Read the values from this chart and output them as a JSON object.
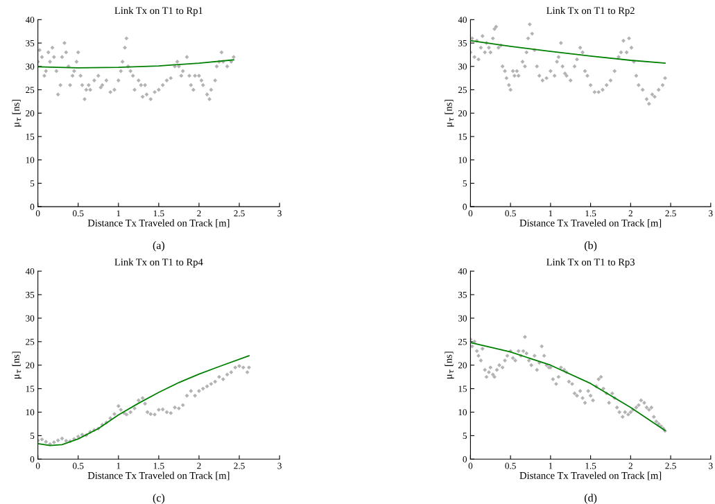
{
  "chart_data": [
    {
      "type": "scatter",
      "title": "Link Tx on T1 to Rp1",
      "xlabel": "Distance Tx Traveled on Track [m]",
      "ylabel": "μ$_{τ}$ [ns]",
      "annotations": [
        "(a)"
      ],
      "xlim": [
        0,
        3
      ],
      "ylim": [
        0,
        40
      ],
      "xticks": [
        0,
        0.5,
        1,
        1.5,
        2,
        2.5,
        3
      ],
      "yticks": [
        0,
        5,
        10,
        15,
        20,
        25,
        30,
        35,
        40
      ],
      "grid": false,
      "series": [
        {
          "marker": "diamond",
          "color": "#b3b3b3",
          "x": [
            0.0,
            0.02,
            0.05,
            0.08,
            0.1,
            0.13,
            0.15,
            0.18,
            0.2,
            0.23,
            0.25,
            0.28,
            0.3,
            0.33,
            0.35,
            0.38,
            0.4,
            0.43,
            0.45,
            0.48,
            0.5,
            0.53,
            0.55,
            0.58,
            0.6,
            0.63,
            0.65,
            0.7,
            0.75,
            0.78,
            0.8,
            0.85,
            0.9,
            0.95,
            1.0,
            1.03,
            1.05,
            1.08,
            1.1,
            1.12,
            1.15,
            1.18,
            1.2,
            1.25,
            1.28,
            1.3,
            1.33,
            1.35,
            1.4,
            1.45,
            1.5,
            1.55,
            1.6,
            1.65,
            1.7,
            1.73,
            1.75,
            1.78,
            1.8,
            1.85,
            1.88,
            1.9,
            1.93,
            1.95,
            2.0,
            2.03,
            2.05,
            2.1,
            2.13,
            2.15,
            2.2,
            2.22,
            2.25,
            2.28,
            2.3,
            2.35,
            2.4,
            2.43
          ],
          "values": [
            31,
            33.5,
            32,
            28,
            29,
            33,
            31,
            34,
            32,
            29,
            24,
            26,
            32,
            35,
            33,
            30,
            26,
            28,
            29,
            31,
            33,
            28,
            26,
            23,
            25,
            26,
            25,
            27,
            28,
            25.5,
            26,
            27,
            24.5,
            25,
            27,
            29,
            31,
            34,
            36,
            30,
            29,
            28,
            25,
            27,
            26,
            23.5,
            26,
            24,
            23,
            24.5,
            25,
            26,
            27,
            27.5,
            30,
            31,
            30,
            28,
            29,
            32,
            28,
            26,
            25,
            28,
            28,
            27,
            26,
            24,
            23,
            25,
            27,
            30,
            31,
            33,
            31,
            30,
            31,
            32
          ]
        },
        {
          "type": "line",
          "color": "#008000",
          "x": [
            0,
            0.5,
            1.0,
            1.5,
            2.0,
            2.43
          ],
          "values": [
            29.9,
            29.7,
            29.8,
            30.1,
            30.7,
            31.4
          ]
        }
      ]
    },
    {
      "type": "scatter",
      "title": "Link Tx on T1 to Rp2",
      "xlabel": "Distance Tx Traveled on Track [m]",
      "ylabel": "μ$_{τ}$ [ns]",
      "annotations": [
        "(b)"
      ],
      "xlim": [
        0,
        3
      ],
      "ylim": [
        0,
        40
      ],
      "xticks": [
        0,
        0.5,
        1,
        1.5,
        2,
        2.5,
        3
      ],
      "yticks": [
        0,
        5,
        10,
        15,
        20,
        25,
        30,
        35,
        40
      ],
      "grid": false,
      "series": [
        {
          "marker": "diamond",
          "color": "#b3b3b3",
          "x": [
            0,
            0.02,
            0.05,
            0.08,
            0.1,
            0.13,
            0.15,
            0.18,
            0.2,
            0.23,
            0.25,
            0.28,
            0.3,
            0.32,
            0.35,
            0.38,
            0.4,
            0.43,
            0.45,
            0.48,
            0.5,
            0.53,
            0.55,
            0.58,
            0.6,
            0.65,
            0.68,
            0.7,
            0.72,
            0.74,
            0.77,
            0.8,
            0.83,
            0.86,
            0.9,
            0.95,
            1.0,
            1.05,
            1.08,
            1.1,
            1.13,
            1.15,
            1.18,
            1.2,
            1.25,
            1.3,
            1.33,
            1.37,
            1.4,
            1.43,
            1.46,
            1.5,
            1.55,
            1.6,
            1.65,
            1.7,
            1.75,
            1.8,
            1.85,
            1.88,
            1.91,
            1.95,
            1.98,
            2.01,
            2.04,
            2.07,
            2.1,
            2.15,
            2.2,
            2.23,
            2.27,
            2.3,
            2.35,
            2.4,
            2.43
          ],
          "values": [
            33,
            36,
            32,
            35.5,
            31.5,
            34,
            36.5,
            33,
            35,
            34,
            33,
            36,
            38,
            38.5,
            34,
            34.5,
            30,
            29,
            27.5,
            26,
            25,
            29,
            28,
            29,
            28,
            31,
            30,
            33,
            36,
            39,
            37,
            33.5,
            30,
            28,
            27,
            27.5,
            29,
            28,
            31,
            32,
            35,
            30,
            28.5,
            28,
            27,
            30,
            31.5,
            34,
            33,
            29,
            28,
            26,
            24.5,
            24.5,
            25,
            26,
            27,
            29,
            32,
            33,
            35.5,
            33,
            36,
            34,
            31,
            28,
            26,
            25,
            23,
            22,
            24,
            23.5,
            25,
            26,
            27.5
          ]
        },
        {
          "type": "line",
          "color": "#008000",
          "x": [
            0,
            0.5,
            1.0,
            1.5,
            2.0,
            2.43
          ],
          "values": [
            35.5,
            34.3,
            33.2,
            32.2,
            31.3,
            30.7
          ]
        }
      ]
    },
    {
      "type": "scatter",
      "title": "Link Tx on T1 to Rp4",
      "xlabel": "Distance Tx Traveled on Track [m]",
      "ylabel": "μ$_{τ}$ [ns]",
      "annotations": [
        "(c)"
      ],
      "xlim": [
        0,
        3
      ],
      "ylim": [
        0,
        40
      ],
      "xticks": [
        0,
        0.5,
        1,
        1.5,
        2,
        2.5,
        3
      ],
      "yticks": [
        0,
        5,
        10,
        15,
        20,
        25,
        30,
        35,
        40
      ],
      "grid": false,
      "series": [
        {
          "marker": "diamond",
          "color": "#b3b3b3",
          "x": [
            0,
            0.05,
            0.1,
            0.15,
            0.2,
            0.25,
            0.3,
            0.35,
            0.4,
            0.45,
            0.5,
            0.55,
            0.6,
            0.65,
            0.7,
            0.75,
            0.8,
            0.85,
            0.9,
            0.95,
            1.0,
            1.03,
            1.07,
            1.1,
            1.15,
            1.2,
            1.25,
            1.3,
            1.33,
            1.36,
            1.4,
            1.45,
            1.5,
            1.55,
            1.6,
            1.65,
            1.7,
            1.75,
            1.8,
            1.85,
            1.9,
            1.95,
            2.0,
            2.05,
            2.1,
            2.15,
            2.2,
            2.25,
            2.3,
            2.35,
            2.4,
            2.45,
            2.5,
            2.55,
            2.6,
            2.62
          ],
          "values": [
            4,
            4.2,
            3.7,
            3.2,
            3.6,
            4,
            4.4,
            3.9,
            3.8,
            4.3,
            4.8,
            5.2,
            5.1,
            5.8,
            6.2,
            6.5,
            7.3,
            7.8,
            8.7,
            9.6,
            11.3,
            10.5,
            9.8,
            9.5,
            10,
            10.8,
            12.5,
            13,
            11.8,
            10,
            9.6,
            9.5,
            10.5,
            10.6,
            10,
            9.8,
            11,
            10.8,
            11.5,
            13.5,
            14.5,
            13.5,
            14.5,
            15,
            15.5,
            16,
            16.5,
            17.5,
            17,
            18,
            18.5,
            19.5,
            19.8,
            19.5,
            18.5,
            19.5
          ]
        },
        {
          "type": "line",
          "color": "#008000",
          "x": [
            0,
            0.15,
            0.3,
            0.5,
            0.75,
            1.0,
            1.25,
            1.5,
            1.75,
            2.0,
            2.25,
            2.62
          ],
          "values": [
            3.3,
            2.9,
            3.1,
            4.3,
            6.5,
            9.4,
            11.9,
            14.2,
            16.3,
            18.1,
            19.7,
            22.0
          ]
        }
      ]
    },
    {
      "type": "scatter",
      "title": "Link Tx on T1 to Rp3",
      "xlabel": "Distance Tx Traveled on Track [m]",
      "ylabel": "μ$_{τ}$ [ns]",
      "annotations": [
        "(d)"
      ],
      "xlim": [
        0,
        3
      ],
      "ylim": [
        0,
        40
      ],
      "xticks": [
        0,
        0.5,
        1,
        1.5,
        2,
        2.5,
        3
      ],
      "yticks": [
        0,
        5,
        10,
        15,
        20,
        25,
        30,
        35,
        40
      ],
      "grid": false,
      "series": [
        {
          "marker": "diamond",
          "color": "#b3b3b3",
          "x": [
            0,
            0.02,
            0.05,
            0.08,
            0.1,
            0.13,
            0.15,
            0.18,
            0.2,
            0.23,
            0.25,
            0.28,
            0.3,
            0.33,
            0.36,
            0.4,
            0.43,
            0.46,
            0.5,
            0.53,
            0.56,
            0.6,
            0.63,
            0.66,
            0.68,
            0.7,
            0.73,
            0.76,
            0.8,
            0.83,
            0.86,
            0.89,
            0.92,
            0.95,
            0.98,
            1.0,
            1.03,
            1.07,
            1.1,
            1.13,
            1.17,
            1.2,
            1.23,
            1.27,
            1.3,
            1.33,
            1.37,
            1.4,
            1.43,
            1.47,
            1.5,
            1.53,
            1.57,
            1.6,
            1.63,
            1.66,
            1.7,
            1.73,
            1.77,
            1.8,
            1.83,
            1.86,
            1.9,
            1.93,
            1.97,
            2.0,
            2.03,
            2.07,
            2.1,
            2.13,
            2.17,
            2.2,
            2.23,
            2.26,
            2.29,
            2.32,
            2.35,
            2.38,
            2.41,
            2.43
          ],
          "values": [
            25.5,
            24,
            25,
            23,
            22,
            21,
            23.5,
            19,
            17.5,
            18.5,
            19.5,
            18,
            17.5,
            19,
            20,
            19.5,
            21,
            22,
            23,
            21.5,
            21,
            23,
            22,
            23,
            26,
            22.5,
            21,
            20,
            22,
            19,
            20.5,
            24,
            22,
            20,
            19.5,
            19.5,
            17,
            16,
            17.5,
            19.5,
            19,
            18.5,
            16.5,
            16,
            14,
            13.5,
            14.5,
            13,
            12,
            14.5,
            13.5,
            12.5,
            15.5,
            17,
            17.5,
            15,
            14,
            12,
            14,
            13,
            11,
            10,
            9,
            10,
            9.5,
            10,
            10.5,
            11,
            11.5,
            12.5,
            12,
            11,
            10.5,
            11,
            9,
            8,
            7.5,
            7,
            6.5,
            6
          ]
        },
        {
          "type": "line",
          "color": "#008000",
          "x": [
            0,
            0.5,
            1.0,
            1.5,
            2.0,
            2.43
          ],
          "values": [
            24.8,
            22.8,
            20.0,
            16.1,
            11.0,
            6.1
          ]
        }
      ]
    }
  ]
}
